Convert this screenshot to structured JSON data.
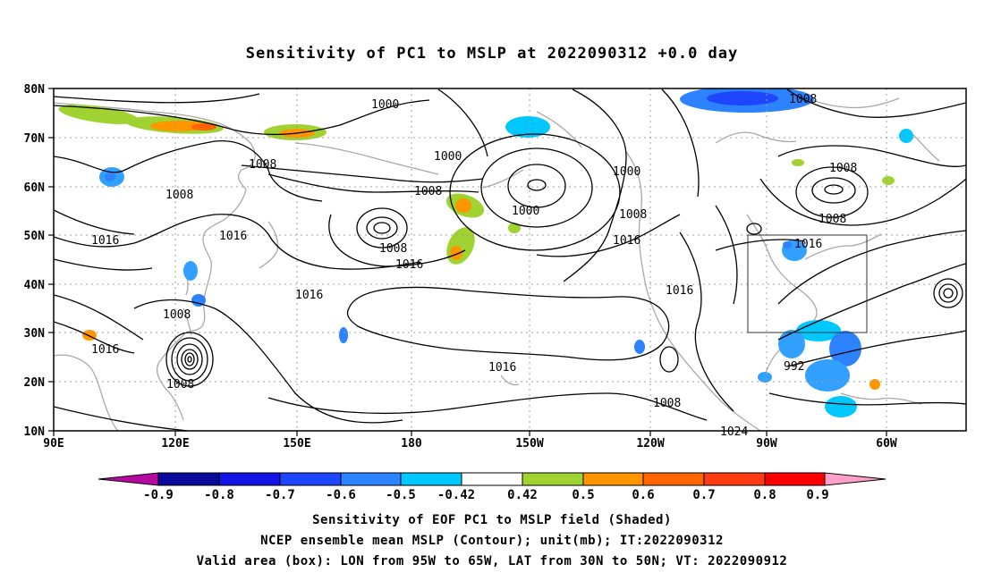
{
  "title": "Sensitivity of PC1 to MSLP at 2022090312 +0.0 day",
  "lat_labels": [
    "80N",
    "70N",
    "60N",
    "50N",
    "40N",
    "30N",
    "20N",
    "10N"
  ],
  "lon_labels": [
    "90E",
    "120E",
    "150E",
    "180",
    "150W",
    "120W",
    "90W",
    "60W"
  ],
  "contour_labels": [
    "1000",
    "1000",
    "1000",
    "1008",
    "1008",
    "1008",
    "1008",
    "1008",
    "1008",
    "1008",
    "1008",
    "1008",
    "1008",
    "1016",
    "1016",
    "1016",
    "1016",
    "1016",
    "1016",
    "1016",
    "1016",
    "1016",
    "992",
    "1000",
    "1008",
    "1024"
  ],
  "colorbar": {
    "labels": [
      "-0.9",
      "-0.8",
      "-0.7",
      "-0.6",
      "-0.5",
      "-0.42",
      "0.42",
      "0.5",
      "0.6",
      "0.7",
      "0.8",
      "0.9"
    ],
    "colors": [
      "#b40aa0",
      "#0a0a9a",
      "#1414e6",
      "#1e46ff",
      "#2d82ff",
      "#32a0ff",
      "#00c8ff",
      "#ffffff",
      "#a0d232",
      "#ff9600",
      "#ff6400",
      "#ff3c14",
      "#ff0000",
      "#ffa0c8"
    ]
  },
  "captions": [
    "Sensitivity of EOF PC1 to MSLP field (Shaded)",
    "NCEP ensemble mean MSLP (Contour); unit(mb); IT:2022090312",
    "Valid area (box): LON from 95W to 65W, LAT from 30N to 50N; VT: 2022090912"
  ]
}
